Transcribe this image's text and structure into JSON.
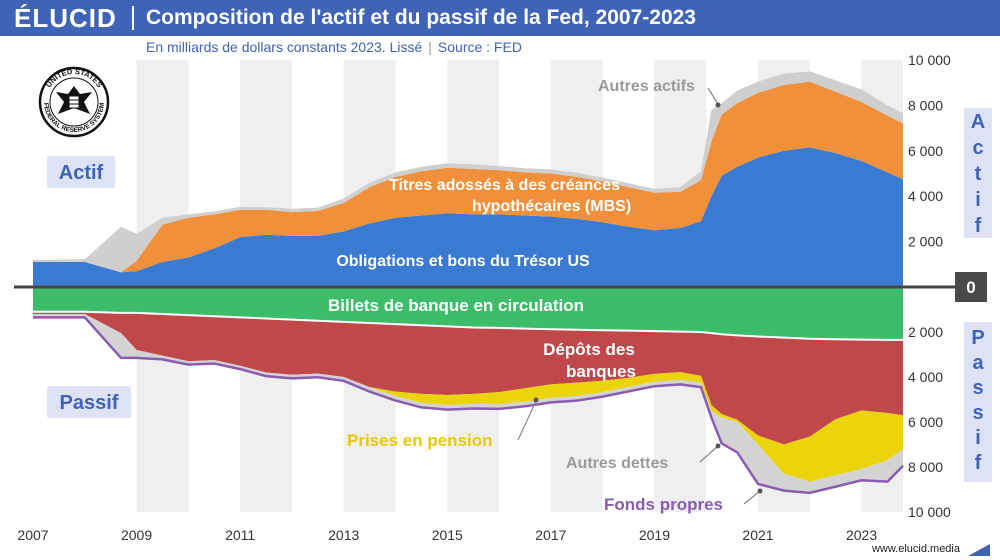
{
  "header": {
    "brand": "ÉLUCID",
    "title": "Composition de l'actif et du passif de la Fed, 2007-2023",
    "subtitle_units": "En milliards de dollars constants 2023. Lissé",
    "subtitle_separator": "|",
    "subtitle_source": "Source : FED"
  },
  "footer": {
    "url": "www.elucid.media"
  },
  "seal": {
    "text_top": "UNITED STATES",
    "text_bottom": "FEDERAL RESERVE SYSTEM"
  },
  "labels": {
    "actif": "Actif",
    "passif": "Passif",
    "actif_vertical": "Actif",
    "passif_vertical": "Passif",
    "zero": "0"
  },
  "annotations": {
    "autres_actifs": "Autres actifs",
    "mbs_line1": "Titres adossés à des créances",
    "mbs_line2": "hypothécaires (MBS)",
    "tresor": "Obligations et bons du Trésor US",
    "billets": "Billets de banque en circulation",
    "depots_line1": "Dépôts des",
    "depots_line2": "banques",
    "prises": "Prises en pension",
    "autres_dettes": "Autres dettes",
    "fonds": "Fonds propres"
  },
  "colors": {
    "header_bg": "#3f63b6",
    "tresor": "#3a7bd1",
    "mbs": "#f0903a",
    "autres_actifs": "#cfcfcf",
    "billets": "#3dbc6a",
    "depots": "#c0484a",
    "prises": "#ecd40c",
    "autres_dettes": "#d3d3d3",
    "fonds_line": "#8a5bb0",
    "year_stripe": "#efefef",
    "label_box": "#dde3f5",
    "label_text": "#3f63b6",
    "mbs_text": "#ffffff",
    "prises_text": "#e8c800",
    "autres_text": "#9a9a9a",
    "fonds_text": "#8a5bb0"
  },
  "chart_data": {
    "type": "area",
    "title": "Composition de l'actif et du passif de la Fed, 2007-2023",
    "unit": "milliards de dollars constants 2023",
    "xlim": [
      2007,
      2023.8
    ],
    "ylim_actif": [
      0,
      10000
    ],
    "ylim_passif": [
      0,
      10000
    ],
    "x_ticks": [
      2007,
      2009,
      2011,
      2013,
      2015,
      2017,
      2019,
      2021,
      2023
    ],
    "y_ticks": [
      2000,
      4000,
      6000,
      8000,
      10000
    ],
    "y_tick_labels": [
      "2 000",
      "4 000",
      "6 000",
      "8 000",
      "10 000"
    ],
    "x": [
      2007,
      2008,
      2008.7,
      2009,
      2009.5,
      2010,
      2010.5,
      2011,
      2011.5,
      2012,
      2012.5,
      2013,
      2013.5,
      2014,
      2014.5,
      2015,
      2015.5,
      2016,
      2016.5,
      2017,
      2017.5,
      2018,
      2018.5,
      2019,
      2019.5,
      2019.9,
      2020.1,
      2020.3,
      2020.6,
      2021,
      2021.5,
      2022,
      2022.5,
      2023,
      2023.5,
      2023.8
    ],
    "actif_series": [
      {
        "name": "Obligations et bons du Trésor US",
        "values": [
          1100,
          1100,
          650,
          700,
          1100,
          1300,
          1700,
          2200,
          2300,
          2250,
          2250,
          2450,
          2800,
          3050,
          3150,
          3250,
          3200,
          3200,
          3150,
          3100,
          3000,
          2850,
          2650,
          2500,
          2600,
          2900,
          4000,
          4900,
          5300,
          5700,
          6000,
          6150,
          5900,
          5550,
          5050,
          4750
        ]
      },
      {
        "name": "Titres adossés à des créances hypothécaires (MBS)",
        "values": [
          0,
          0,
          0,
          450,
          1650,
          1750,
          1500,
          1200,
          1100,
          1050,
          1100,
          1250,
          1600,
          1800,
          1950,
          2000,
          2000,
          1950,
          1900,
          1900,
          1850,
          1800,
          1750,
          1650,
          1600,
          1800,
          2400,
          2700,
          2800,
          2850,
          2900,
          2900,
          2700,
          2600,
          2500,
          2450
        ]
      },
      {
        "name": "Autres actifs",
        "values": [
          100,
          120,
          2000,
          1200,
          300,
          150,
          130,
          130,
          120,
          150,
          150,
          200,
          200,
          200,
          200,
          200,
          200,
          180,
          180,
          180,
          180,
          170,
          170,
          170,
          200,
          400,
          1400,
          500,
          550,
          500,
          500,
          450,
          500,
          550,
          450,
          450
        ]
      }
    ],
    "passif_series": [
      {
        "name": "Billets de banque en circulation",
        "values": [
          1100,
          1100,
          1150,
          1150,
          1200,
          1250,
          1300,
          1350,
          1400,
          1450,
          1500,
          1550,
          1600,
          1650,
          1700,
          1750,
          1800,
          1820,
          1850,
          1880,
          1900,
          1920,
          1940,
          1960,
          1980,
          2000,
          2050,
          2100,
          2150,
          2200,
          2250,
          2300,
          2320,
          2340,
          2350,
          2350
        ]
      },
      {
        "name": "Dépôts des banques",
        "values": [
          100,
          100,
          900,
          1650,
          1850,
          2050,
          1950,
          2150,
          2400,
          2450,
          2350,
          2450,
          2850,
          3000,
          3050,
          3050,
          2950,
          2850,
          2650,
          2450,
          2350,
          2250,
          2100,
          1900,
          1800,
          1950,
          3200,
          3550,
          3750,
          4400,
          4750,
          4350,
          3550,
          3150,
          3250,
          3350
        ]
      },
      {
        "name": "Prises en pension",
        "values": [
          0,
          0,
          0,
          0,
          0,
          0,
          0,
          0,
          0,
          0,
          0,
          0,
          0,
          200,
          400,
          450,
          450,
          550,
          600,
          600,
          600,
          500,
          400,
          350,
          350,
          300,
          250,
          150,
          100,
          400,
          1300,
          2000,
          2500,
          2600,
          2100,
          1500
        ]
      },
      {
        "name": "Autres dettes",
        "values": [
          100,
          100,
          1050,
          300,
          120,
          100,
          100,
          100,
          110,
          110,
          110,
          120,
          150,
          150,
          150,
          150,
          150,
          150,
          150,
          150,
          150,
          150,
          150,
          150,
          150,
          150,
          250,
          1100,
          1300,
          1700,
          700,
          450,
          450,
          450,
          900,
          700
        ]
      },
      {
        "name": "Fonds propres",
        "values": [
          50,
          50,
          50,
          50,
          50,
          50,
          50,
          50,
          50,
          50,
          50,
          50,
          50,
          50,
          50,
          50,
          50,
          50,
          50,
          50,
          50,
          50,
          50,
          50,
          50,
          50,
          50,
          50,
          50,
          50,
          50,
          50,
          50,
          50,
          50,
          50
        ]
      }
    ]
  }
}
